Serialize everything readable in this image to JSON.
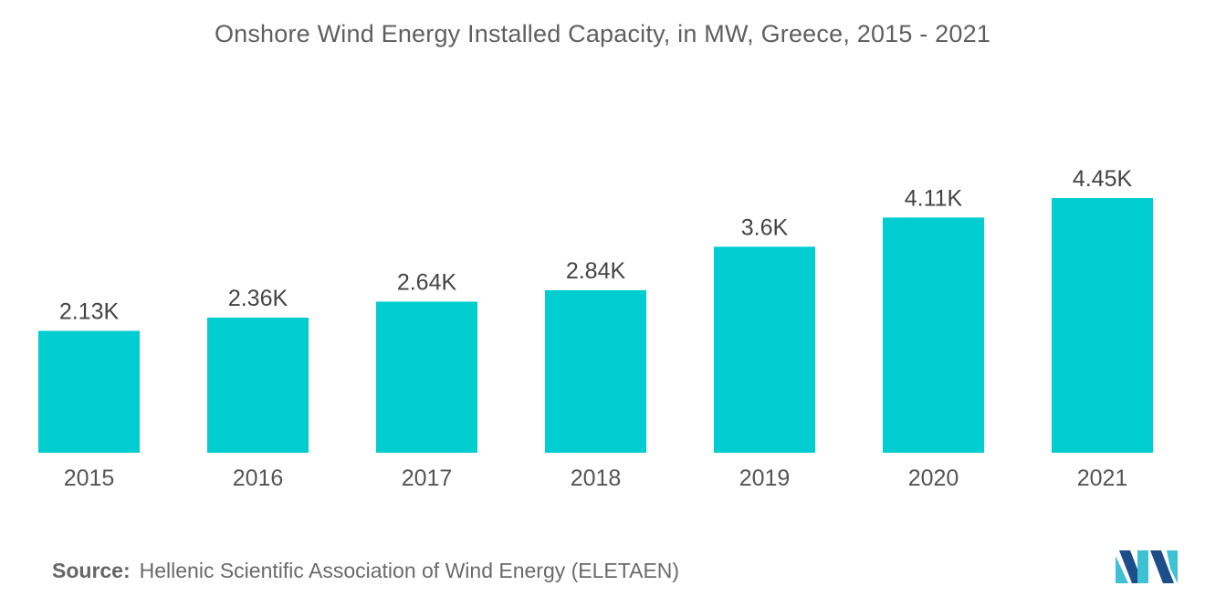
{
  "chart_data": {
    "type": "bar",
    "title": "Onshore Wind Energy Installed Capacity, in MW, Greece, 2015 - 2021",
    "categories": [
      "2015",
      "2016",
      "2017",
      "2018",
      "2019",
      "2020",
      "2021"
    ],
    "values": [
      2130,
      2360,
      2640,
      2840,
      3600,
      4110,
      4450
    ],
    "data_labels": [
      "2.13K",
      "2.36K",
      "2.64K",
      "2.84K",
      "3.6K",
      "4.11K",
      "4.45K"
    ],
    "xlabel": "",
    "ylabel": "",
    "ylim": [
      0,
      4450
    ],
    "grid": false,
    "legend": "none",
    "bar_color": "#00cdd0"
  },
  "source": {
    "label": "Source:",
    "text": "Hellenic Scientific Association of Wind Energy (ELETAEN)"
  },
  "logo": {
    "icon": "mordor-intelligence-logo-icon",
    "colors": [
      "#1d4e89",
      "#3ec1d3"
    ]
  }
}
